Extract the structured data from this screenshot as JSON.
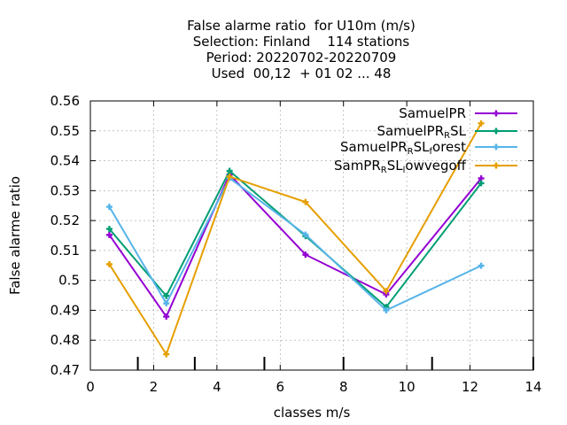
{
  "chart_data": {
    "type": "line",
    "title_lines": [
      "False alarme ratio  for U10m (m/s)",
      "Selection: Finland    114 stations",
      "Period: 20220702-20220709",
      "Used  00,12  + 01 02 ... 48"
    ],
    "xlabel": "classes m/s",
    "ylabel": "False alarme ratio",
    "xlim": [
      0,
      14
    ],
    "ylim": [
      0.47,
      0.56
    ],
    "xticks": [
      0,
      2,
      4,
      6,
      8,
      10,
      12,
      14
    ],
    "xtick_labels": [
      "0",
      "2",
      "4",
      "6",
      "8",
      "10",
      "12",
      "14"
    ],
    "yticks": [
      0.47,
      0.48,
      0.49,
      0.5,
      0.51,
      0.52,
      0.53,
      0.54,
      0.55,
      0.56
    ],
    "ytick_labels": [
      "0.47",
      "0.48",
      "0.49",
      "0.5",
      "0.51",
      "0.52",
      "0.53",
      "0.54",
      "0.55",
      "0.56"
    ],
    "class_boundaries": [
      1.5,
      3.3,
      5.5,
      8,
      10.8,
      14
    ],
    "grid": true,
    "legend_position": "top-right",
    "series": [
      {
        "name": "SamuelPR",
        "label_parts": [
          {
            "t": "SamuelPR"
          }
        ],
        "color": "#9400d3",
        "x": [
          0.6,
          2.4,
          4.4,
          6.8,
          9.35,
          12.35
        ],
        "y": [
          0.5152,
          0.4879,
          0.5354,
          0.5086,
          0.4953,
          0.5341
        ]
      },
      {
        "name": "SamuelPR_RSL",
        "label_parts": [
          {
            "t": "SamuelPR"
          },
          {
            "t": "R",
            "sub": true
          },
          {
            "t": "SL"
          }
        ],
        "color": "#009e73",
        "x": [
          0.6,
          2.4,
          4.4,
          6.8,
          9.35,
          12.35
        ],
        "y": [
          0.5172,
          0.4948,
          0.5366,
          0.5148,
          0.4911,
          0.5325
        ]
      },
      {
        "name": "SamuelPR_RSL_forest",
        "label_parts": [
          {
            "t": "SamuelPR"
          },
          {
            "t": "R",
            "sub": true
          },
          {
            "t": "SL"
          },
          {
            "t": "f",
            "sub": true
          },
          {
            "t": "orest"
          }
        ],
        "color": "#56b4e9",
        "x": [
          0.6,
          2.4,
          4.4,
          6.8,
          9.35,
          12.35
        ],
        "y": [
          0.5246,
          0.4923,
          0.5342,
          0.5153,
          0.49,
          0.5049
        ]
      },
      {
        "name": "SamPR_RSL_lowvegoff",
        "label_parts": [
          {
            "t": "SamPR"
          },
          {
            "t": "R",
            "sub": true
          },
          {
            "t": "SL"
          },
          {
            "t": "l",
            "sub": true
          },
          {
            "t": "owvegoff"
          }
        ],
        "color": "#e69f00",
        "x": [
          0.6,
          2.4,
          4.4,
          6.8,
          9.35,
          12.35
        ],
        "y": [
          0.5054,
          0.4753,
          0.5347,
          0.5262,
          0.4964,
          0.5525
        ]
      }
    ]
  }
}
